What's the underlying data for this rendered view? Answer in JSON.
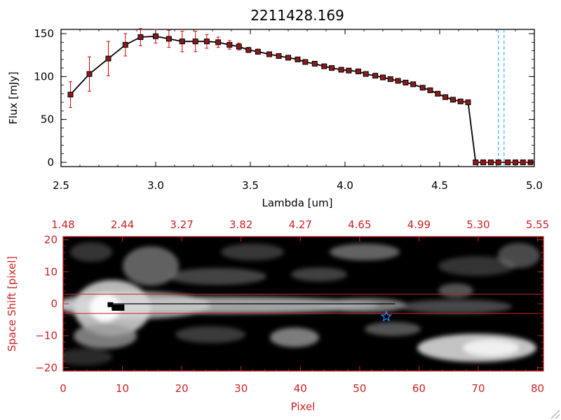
{
  "chart_data": [
    {
      "type": "line",
      "title": "2211428.169",
      "xlabel": "Lambda [um]",
      "ylabel": "Flux [mJy]",
      "xlim": [
        2.5,
        5.0
      ],
      "ylim": [
        -5,
        155
      ],
      "xticks": [
        2.5,
        3.0,
        3.5,
        4.0,
        4.5,
        5.0
      ],
      "xtick_labels": [
        "2.5",
        "3.0",
        "3.5",
        "4.0",
        "4.5",
        "5.0"
      ],
      "yticks": [
        0,
        50,
        100,
        150
      ],
      "ytick_labels": [
        "0",
        "50",
        "100",
        "150"
      ],
      "series": [
        {
          "x": [
            2.55,
            2.65,
            2.75,
            2.84,
            2.92,
            3.0,
            3.07,
            3.14,
            3.21,
            3.27,
            3.33,
            3.39,
            3.44,
            3.49,
            3.54,
            3.6,
            3.65,
            3.7,
            3.75,
            3.79,
            3.84,
            3.89,
            3.93,
            3.98,
            4.02,
            4.07,
            4.11,
            4.16,
            4.2,
            4.24,
            4.28,
            4.32,
            4.36,
            4.41,
            4.45,
            4.49,
            4.53,
            4.57,
            4.61,
            4.65,
            4.69,
            4.73,
            4.77,
            4.81,
            4.86,
            4.9,
            4.94,
            4.98
          ],
          "y": [
            79,
            103,
            121,
            137,
            146,
            147,
            144,
            141,
            141,
            141,
            140,
            137,
            135,
            131,
            129,
            126,
            124,
            122,
            120,
            117,
            115,
            112,
            110,
            108,
            107,
            106,
            103,
            101,
            99,
            97,
            95,
            93,
            91,
            87,
            84,
            80,
            76,
            73,
            71,
            70,
            0,
            0,
            0,
            0,
            0,
            0,
            0,
            0
          ],
          "yerr": [
            15,
            20,
            20,
            13,
            10,
            8,
            10,
            12,
            12,
            8,
            6,
            5,
            4,
            3,
            3,
            2,
            2,
            2,
            2,
            2,
            2,
            2,
            2,
            2,
            2,
            2,
            2,
            2,
            2,
            2,
            2,
            2,
            2,
            2,
            2,
            2,
            2,
            2,
            2,
            2,
            0,
            0,
            0,
            0,
            0,
            0,
            0,
            0
          ]
        }
      ],
      "vlines": [
        4.81,
        4.84
      ],
      "colors": {
        "line": "#000000",
        "marker": "#8b1a1a",
        "errorbar": "#dd0000",
        "vline": "#1ea0ff"
      },
      "grid": false
    },
    {
      "type": "heatmap",
      "xlabel": "Pixel",
      "ylabel": "Space Shift [pixel]",
      "xlim": [
        0,
        81
      ],
      "ylim": [
        -21,
        21
      ],
      "xticks": [
        0,
        10,
        20,
        30,
        40,
        50,
        60,
        70,
        80
      ],
      "xtick_labels": [
        "0",
        "10",
        "20",
        "30",
        "40",
        "50",
        "60",
        "70",
        "80"
      ],
      "yticks": [
        -20,
        -10,
        0,
        10,
        20
      ],
      "ytick_labels": [
        "−20",
        "−10",
        "0",
        "10",
        "20"
      ],
      "top_tick_labels": [
        "1.48",
        "2.44",
        "3.27",
        "3.82",
        "4.27",
        "4.65",
        "4.99",
        "5.30",
        "5.55"
      ],
      "hlines": [
        3,
        -3
      ],
      "trace_y": 0,
      "star": {
        "x": 54.5,
        "y": -4
      },
      "colors": {
        "axes": "#cc2222",
        "star": "#3388ff",
        "background": "#000000"
      },
      "grid": false
    }
  ]
}
